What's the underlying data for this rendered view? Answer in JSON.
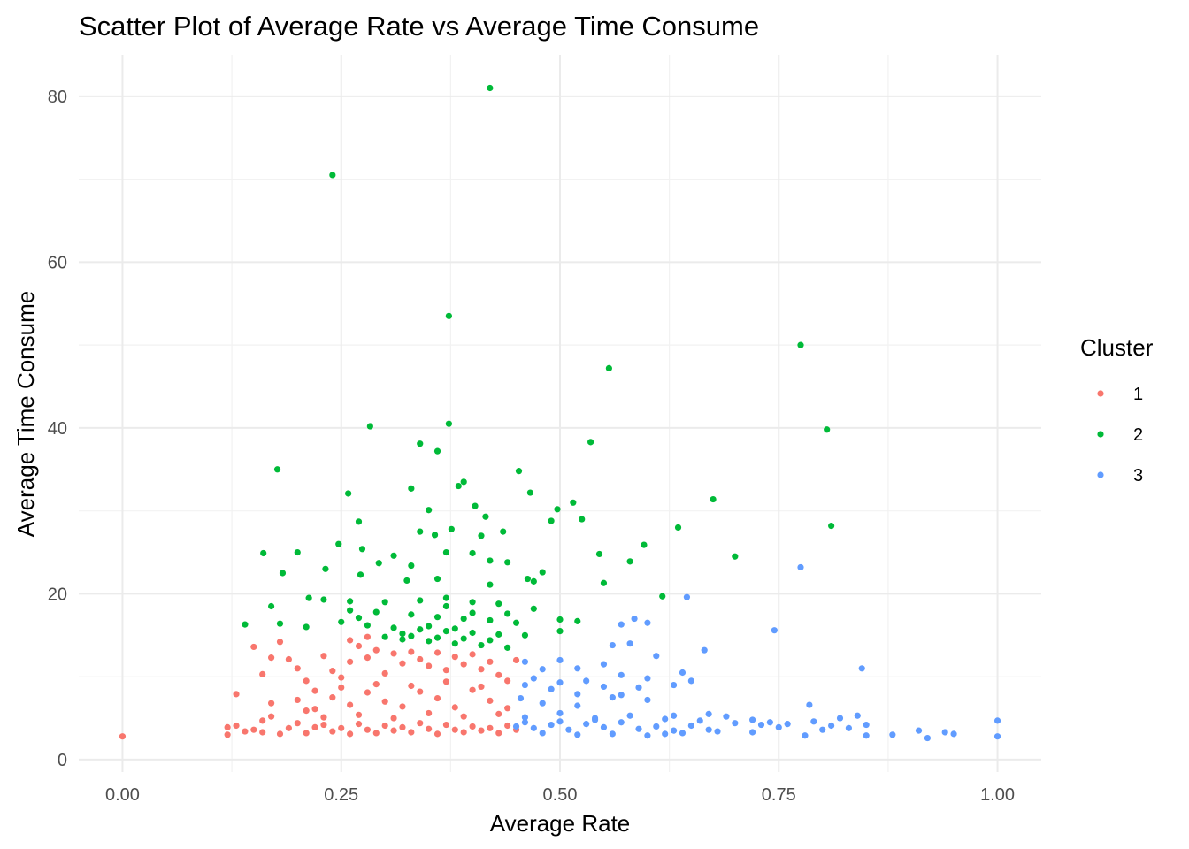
{
  "chart_data": {
    "type": "scatter",
    "title": "Scatter Plot of Average Rate vs Average Time Consume",
    "xlabel": "Average Rate",
    "ylabel": "Average Time Consume",
    "xlim": [
      -0.05,
      1.05
    ],
    "ylim": [
      -1.5,
      85
    ],
    "x_ticks": [
      0,
      0.25,
      0.5,
      0.75,
      1.0
    ],
    "x_tick_labels": [
      "0.00",
      "0.25",
      "0.50",
      "0.75",
      "1.00"
    ],
    "y_ticks": [
      0,
      20,
      40,
      60,
      80
    ],
    "y_tick_labels": [
      "0",
      "20",
      "40",
      "60",
      "80"
    ],
    "grid": true,
    "legend": {
      "title": "Cluster",
      "placement": "right"
    },
    "series": [
      {
        "name": "1",
        "color": "#F8766D",
        "points": [
          [
            0.0,
            2.8
          ],
          [
            0.12,
            3.0
          ],
          [
            0.12,
            3.9
          ],
          [
            0.13,
            4.1
          ],
          [
            0.14,
            3.4
          ],
          [
            0.15,
            3.6
          ],
          [
            0.13,
            7.9
          ],
          [
            0.16,
            3.3
          ],
          [
            0.16,
            4.7
          ],
          [
            0.17,
            5.2
          ],
          [
            0.18,
            3.1
          ],
          [
            0.19,
            3.8
          ],
          [
            0.2,
            4.4
          ],
          [
            0.21,
            3.2
          ],
          [
            0.22,
            3.9
          ],
          [
            0.23,
            4.2
          ],
          [
            0.24,
            3.4
          ],
          [
            0.25,
            3.8
          ],
          [
            0.26,
            3.1
          ],
          [
            0.27,
            4.3
          ],
          [
            0.28,
            3.6
          ],
          [
            0.29,
            3.2
          ],
          [
            0.3,
            4.1
          ],
          [
            0.31,
            3.5
          ],
          [
            0.32,
            3.9
          ],
          [
            0.33,
            3.3
          ],
          [
            0.34,
            4.4
          ],
          [
            0.35,
            3.7
          ],
          [
            0.36,
            3.1
          ],
          [
            0.37,
            4.2
          ],
          [
            0.38,
            3.6
          ],
          [
            0.39,
            3.3
          ],
          [
            0.4,
            4.0
          ],
          [
            0.41,
            3.5
          ],
          [
            0.42,
            3.8
          ],
          [
            0.43,
            3.2
          ],
          [
            0.44,
            4.1
          ],
          [
            0.45,
            3.6
          ],
          [
            0.19,
            12.1
          ],
          [
            0.2,
            11.0
          ],
          [
            0.21,
            9.5
          ],
          [
            0.22,
            8.3
          ],
          [
            0.23,
            12.5
          ],
          [
            0.24,
            10.7
          ],
          [
            0.25,
            9.9
          ],
          [
            0.26,
            11.8
          ],
          [
            0.27,
            13.7
          ],
          [
            0.28,
            12.3
          ],
          [
            0.29,
            13.2
          ],
          [
            0.3,
            10.4
          ],
          [
            0.31,
            12.8
          ],
          [
            0.32,
            11.6
          ],
          [
            0.33,
            13.0
          ],
          [
            0.34,
            12.1
          ],
          [
            0.35,
            11.3
          ],
          [
            0.36,
            12.9
          ],
          [
            0.37,
            10.8
          ],
          [
            0.38,
            12.4
          ],
          [
            0.39,
            11.5
          ],
          [
            0.4,
            12.7
          ],
          [
            0.41,
            10.9
          ],
          [
            0.42,
            11.8
          ],
          [
            0.43,
            10.2
          ],
          [
            0.44,
            9.5
          ],
          [
            0.45,
            12.0
          ],
          [
            0.18,
            14.2
          ],
          [
            0.26,
            14.4
          ],
          [
            0.28,
            14.8
          ],
          [
            0.2,
            7.2
          ],
          [
            0.22,
            6.1
          ],
          [
            0.24,
            7.5
          ],
          [
            0.26,
            6.6
          ],
          [
            0.28,
            8.1
          ],
          [
            0.3,
            7.0
          ],
          [
            0.32,
            6.4
          ],
          [
            0.34,
            8.2
          ],
          [
            0.36,
            7.4
          ],
          [
            0.38,
            6.3
          ],
          [
            0.4,
            8.4
          ],
          [
            0.42,
            7.1
          ],
          [
            0.44,
            6.2
          ],
          [
            0.23,
            5.1
          ],
          [
            0.27,
            5.4
          ],
          [
            0.31,
            5.0
          ],
          [
            0.35,
            5.6
          ],
          [
            0.39,
            5.2
          ],
          [
            0.43,
            5.5
          ],
          [
            0.29,
            9.1
          ],
          [
            0.33,
            8.9
          ],
          [
            0.37,
            9.4
          ],
          [
            0.41,
            8.8
          ],
          [
            0.25,
            8.7
          ],
          [
            0.21,
            5.9
          ],
          [
            0.17,
            6.8
          ],
          [
            0.16,
            10.3
          ],
          [
            0.15,
            13.6
          ],
          [
            0.17,
            12.3
          ]
        ]
      },
      {
        "name": "2",
        "color": "#00BA38",
        "points": [
          [
            0.42,
            81.0
          ],
          [
            0.24,
            70.5
          ],
          [
            0.373,
            53.5
          ],
          [
            0.775,
            50.0
          ],
          [
            0.556,
            47.2
          ],
          [
            0.373,
            40.5
          ],
          [
            0.805,
            39.8
          ],
          [
            0.283,
            40.2
          ],
          [
            0.34,
            38.1
          ],
          [
            0.36,
            37.2
          ],
          [
            0.535,
            38.3
          ],
          [
            0.177,
            35.0
          ],
          [
            0.453,
            34.8
          ],
          [
            0.39,
            33.5
          ],
          [
            0.33,
            32.7
          ],
          [
            0.258,
            32.1
          ],
          [
            0.466,
            32.2
          ],
          [
            0.384,
            33.0
          ],
          [
            0.675,
            31.4
          ],
          [
            0.515,
            31.0
          ],
          [
            0.497,
            30.2
          ],
          [
            0.35,
            30.1
          ],
          [
            0.403,
            30.6
          ],
          [
            0.525,
            29.0
          ],
          [
            0.49,
            28.8
          ],
          [
            0.415,
            29.3
          ],
          [
            0.27,
            28.7
          ],
          [
            0.81,
            28.2
          ],
          [
            0.635,
            28.0
          ],
          [
            0.376,
            27.8
          ],
          [
            0.34,
            27.5
          ],
          [
            0.357,
            27.1
          ],
          [
            0.41,
            27.0
          ],
          [
            0.435,
            27.5
          ],
          [
            0.247,
            26.0
          ],
          [
            0.596,
            25.9
          ],
          [
            0.274,
            25.4
          ],
          [
            0.545,
            24.8
          ],
          [
            0.7,
            24.5
          ],
          [
            0.161,
            24.9
          ],
          [
            0.2,
            25.0
          ],
          [
            0.37,
            25.0
          ],
          [
            0.31,
            24.6
          ],
          [
            0.42,
            24.0
          ],
          [
            0.4,
            24.9
          ],
          [
            0.58,
            23.9
          ],
          [
            0.44,
            23.8
          ],
          [
            0.293,
            23.7
          ],
          [
            0.33,
            23.4
          ],
          [
            0.232,
            23.0
          ],
          [
            0.183,
            22.5
          ],
          [
            0.272,
            22.3
          ],
          [
            0.36,
            21.8
          ],
          [
            0.48,
            22.6
          ],
          [
            0.55,
            21.3
          ],
          [
            0.325,
            21.6
          ],
          [
            0.42,
            21.1
          ],
          [
            0.463,
            21.8
          ],
          [
            0.47,
            21.5
          ],
          [
            0.617,
            19.7
          ],
          [
            0.213,
            19.5
          ],
          [
            0.23,
            19.3
          ],
          [
            0.26,
            19.1
          ],
          [
            0.3,
            19.0
          ],
          [
            0.34,
            19.2
          ],
          [
            0.37,
            19.5
          ],
          [
            0.4,
            19.0
          ],
          [
            0.43,
            18.8
          ],
          [
            0.17,
            18.5
          ],
          [
            0.26,
            18.0
          ],
          [
            0.29,
            17.8
          ],
          [
            0.33,
            17.5
          ],
          [
            0.36,
            17.2
          ],
          [
            0.39,
            17.0
          ],
          [
            0.42,
            16.8
          ],
          [
            0.45,
            16.5
          ],
          [
            0.5,
            16.9
          ],
          [
            0.52,
            16.7
          ],
          [
            0.18,
            16.4
          ],
          [
            0.21,
            16.0
          ],
          [
            0.28,
            16.2
          ],
          [
            0.31,
            15.9
          ],
          [
            0.34,
            15.7
          ],
          [
            0.37,
            15.5
          ],
          [
            0.4,
            15.3
          ],
          [
            0.43,
            15.1
          ],
          [
            0.46,
            15.0
          ],
          [
            0.5,
            15.5
          ],
          [
            0.14,
            16.3
          ],
          [
            0.3,
            14.8
          ],
          [
            0.32,
            14.5
          ],
          [
            0.35,
            14.3
          ],
          [
            0.38,
            14.0
          ],
          [
            0.41,
            13.8
          ],
          [
            0.44,
            13.5
          ],
          [
            0.33,
            14.9
          ],
          [
            0.36,
            14.7
          ],
          [
            0.39,
            14.6
          ],
          [
            0.42,
            14.4
          ],
          [
            0.35,
            16.1
          ],
          [
            0.32,
            15.2
          ],
          [
            0.38,
            15.8
          ],
          [
            0.25,
            16.6
          ],
          [
            0.27,
            17.1
          ],
          [
            0.44,
            17.6
          ],
          [
            0.47,
            18.2
          ],
          [
            0.37,
            18.5
          ],
          [
            0.4,
            17.7
          ]
        ]
      },
      {
        "name": "3",
        "color": "#619CFF",
        "points": [
          [
            0.775,
            23.2
          ],
          [
            0.645,
            19.6
          ],
          [
            0.745,
            15.6
          ],
          [
            0.585,
            17.0
          ],
          [
            0.57,
            16.3
          ],
          [
            0.6,
            16.5
          ],
          [
            0.58,
            14.0
          ],
          [
            0.56,
            13.8
          ],
          [
            0.61,
            12.5
          ],
          [
            0.665,
            13.2
          ],
          [
            0.845,
            11.0
          ],
          [
            0.5,
            12.0
          ],
          [
            0.55,
            11.5
          ],
          [
            0.46,
            11.8
          ],
          [
            0.52,
            11.0
          ],
          [
            0.48,
            10.9
          ],
          [
            0.47,
            9.8
          ],
          [
            0.53,
            9.5
          ],
          [
            0.57,
            10.2
          ],
          [
            0.6,
            9.8
          ],
          [
            0.64,
            10.5
          ],
          [
            0.5,
            9.3
          ],
          [
            0.55,
            8.8
          ],
          [
            0.59,
            8.7
          ],
          [
            0.63,
            9.0
          ],
          [
            0.65,
            9.5
          ],
          [
            0.46,
            9.0
          ],
          [
            0.49,
            8.5
          ],
          [
            0.52,
            7.9
          ],
          [
            0.56,
            7.5
          ],
          [
            0.6,
            7.2
          ],
          [
            0.57,
            7.8
          ],
          [
            0.52,
            6.5
          ],
          [
            0.48,
            6.8
          ],
          [
            0.455,
            7.4
          ],
          [
            0.785,
            6.6
          ],
          [
            0.84,
            5.3
          ],
          [
            0.82,
            5.0
          ],
          [
            0.63,
            5.3
          ],
          [
            0.67,
            5.5
          ],
          [
            0.69,
            5.2
          ],
          [
            0.72,
            4.8
          ],
          [
            0.74,
            4.5
          ],
          [
            0.76,
            4.3
          ],
          [
            0.79,
            4.6
          ],
          [
            0.81,
            4.1
          ],
          [
            0.83,
            3.8
          ],
          [
            0.85,
            4.2
          ],
          [
            0.88,
            3.0
          ],
          [
            0.91,
            3.5
          ],
          [
            0.92,
            2.6
          ],
          [
            0.94,
            3.3
          ],
          [
            0.95,
            3.1
          ],
          [
            1.0,
            4.7
          ],
          [
            1.0,
            2.8
          ],
          [
            0.78,
            2.9
          ],
          [
            0.85,
            2.9
          ],
          [
            0.45,
            4.0
          ],
          [
            0.47,
            3.8
          ],
          [
            0.49,
            4.2
          ],
          [
            0.51,
            3.6
          ],
          [
            0.53,
            4.3
          ],
          [
            0.55,
            3.9
          ],
          [
            0.57,
            4.5
          ],
          [
            0.59,
            3.7
          ],
          [
            0.61,
            4.0
          ],
          [
            0.63,
            3.5
          ],
          [
            0.65,
            4.1
          ],
          [
            0.67,
            3.6
          ],
          [
            0.7,
            4.4
          ],
          [
            0.72,
            3.3
          ],
          [
            0.75,
            3.9
          ],
          [
            0.46,
            5.1
          ],
          [
            0.5,
            5.6
          ],
          [
            0.54,
            5.0
          ],
          [
            0.58,
            5.3
          ],
          [
            0.62,
            4.9
          ],
          [
            0.66,
            4.7
          ],
          [
            0.48,
            3.2
          ],
          [
            0.52,
            3.0
          ],
          [
            0.56,
            3.1
          ],
          [
            0.6,
            2.9
          ],
          [
            0.64,
            3.2
          ],
          [
            0.68,
            3.4
          ],
          [
            0.5,
            4.6
          ],
          [
            0.54,
            4.8
          ],
          [
            0.46,
            4.5
          ],
          [
            0.62,
            3.1
          ],
          [
            0.73,
            4.2
          ],
          [
            0.8,
            3.6
          ]
        ]
      }
    ]
  }
}
